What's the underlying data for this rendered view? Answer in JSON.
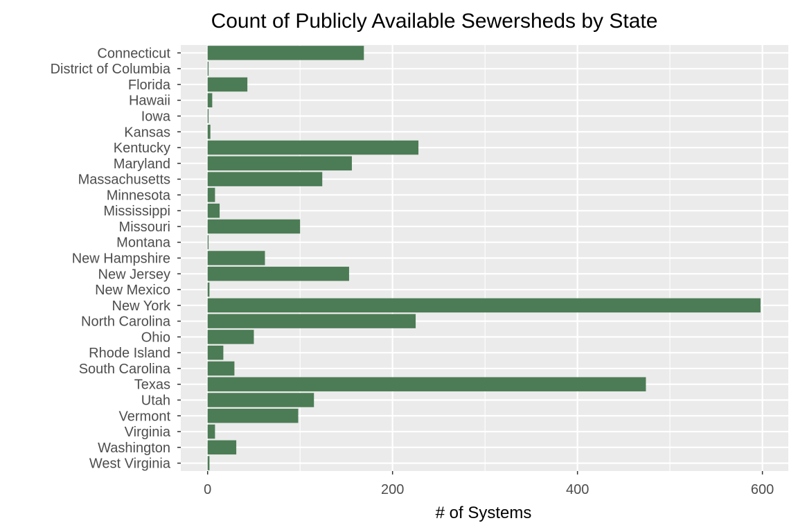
{
  "chart_data": {
    "type": "bar",
    "orientation": "horizontal",
    "title": "Count of Publicly Available Sewersheds by State",
    "xlabel": "# of Systems",
    "ylabel": "",
    "categories": [
      "Connecticut",
      "District of Columbia",
      "Florida",
      "Hawaii",
      "Iowa",
      "Kansas",
      "Kentucky",
      "Maryland",
      "Massachusetts",
      "Minnesota",
      "Mississippi",
      "Missouri",
      "Montana",
      "New Hampshire",
      "New Jersey",
      "New Mexico",
      "New York",
      "North Carolina",
      "Ohio",
      "Rhode Island",
      "South Carolina",
      "Texas",
      "Utah",
      "Vermont",
      "Virginia",
      "Washington",
      "West Virginia"
    ],
    "values": [
      169,
      1,
      43,
      5,
      1,
      3,
      228,
      156,
      124,
      8,
      13,
      100,
      1,
      62,
      153,
      2,
      598,
      225,
      50,
      17,
      29,
      474,
      115,
      98,
      8,
      31,
      2
    ],
    "xlim": [
      -29,
      628
    ],
    "xticks": [
      0,
      200,
      400,
      600
    ],
    "xtick_labels": [
      "0",
      "200",
      "400",
      "600"
    ],
    "grid": true,
    "bar_color": "#4c7c55",
    "panel_background": "#ebebeb",
    "gridline_color": "#ffffff"
  }
}
